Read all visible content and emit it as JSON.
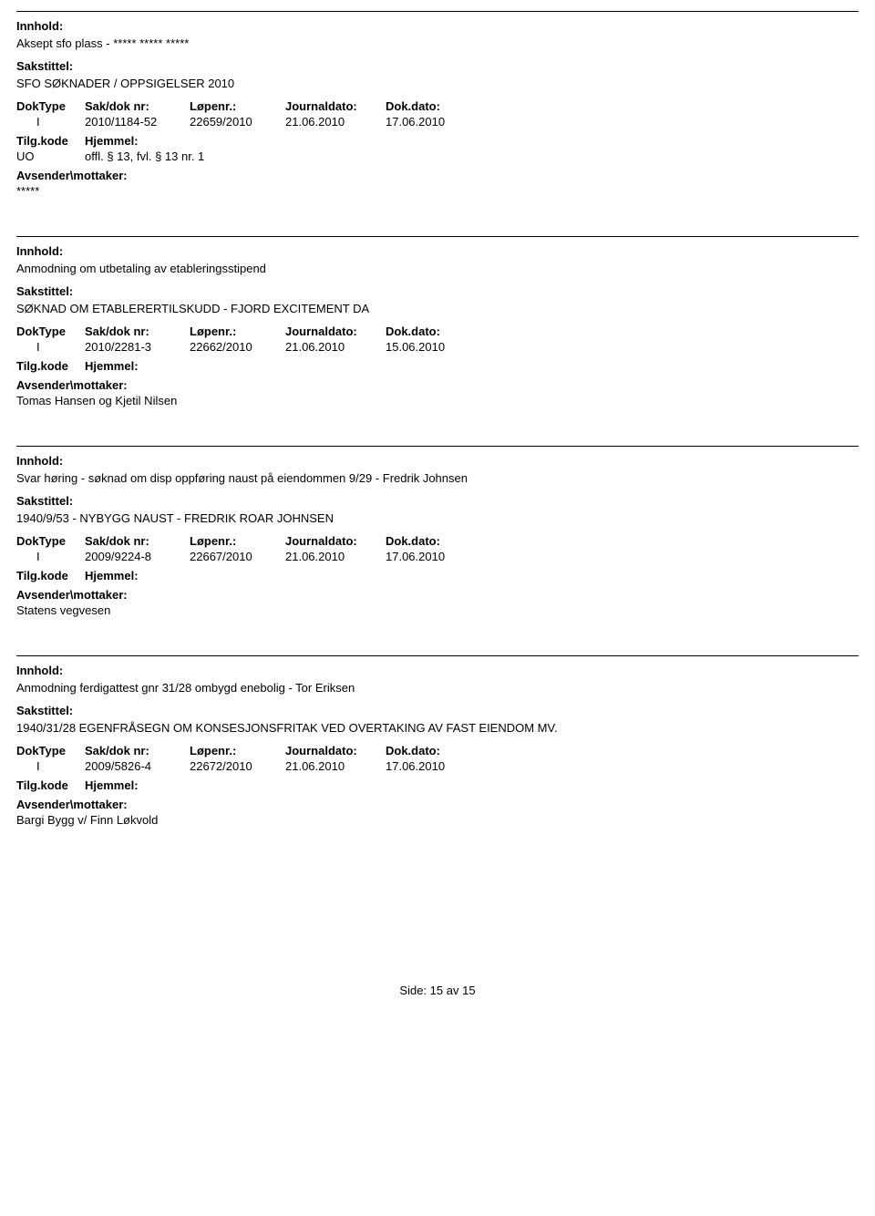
{
  "labels": {
    "innhold": "Innhold:",
    "sakstittel": "Sakstittel:",
    "doktype": "DokType",
    "sakdok": "Sak/dok nr:",
    "lopenr": "Løpenr.:",
    "journaldato": "Journaldato:",
    "dokdato": "Dok.dato:",
    "tilgkode": "Tilg.kode",
    "hjemmel": "Hjemmel:",
    "avsender": "Avsender\\mottaker:",
    "side": "Side:"
  },
  "records": [
    {
      "innhold": "Aksept sfo plass - ***** ***** *****",
      "sakstittel": "SFO SØKNADER / OPPSIGELSER 2010",
      "doktype": "I",
      "sakdok": "2010/1184-52",
      "lopenr": "22659/2010",
      "journaldato": "21.06.2010",
      "dokdato": "17.06.2010",
      "tilgkode": "UO",
      "hjemmel": "offl. § 13, fvl. § 13 nr. 1",
      "avsender": "*****"
    },
    {
      "innhold": "Anmodning om utbetaling av etableringsstipend",
      "sakstittel": "SØKNAD OM ETABLERERTILSKUDD - FJORD EXCITEMENT DA",
      "doktype": "I",
      "sakdok": "2010/2281-3",
      "lopenr": "22662/2010",
      "journaldato": "21.06.2010",
      "dokdato": "15.06.2010",
      "tilgkode": "",
      "hjemmel": "",
      "avsender": "Tomas Hansen og Kjetil Nilsen"
    },
    {
      "innhold": "Svar høring - søknad om disp oppføring naust på eiendommen 9/29 - Fredrik Johnsen",
      "sakstittel": "1940/9/53 - NYBYGG NAUST - FREDRIK ROAR JOHNSEN",
      "doktype": "I",
      "sakdok": "2009/9224-8",
      "lopenr": "22667/2010",
      "journaldato": "21.06.2010",
      "dokdato": "17.06.2010",
      "tilgkode": "",
      "hjemmel": "",
      "avsender": "Statens vegvesen"
    },
    {
      "innhold": "Anmodning ferdigattest gnr 31/28 ombygd enebolig - Tor Eriksen",
      "sakstittel": "1940/31/28 EGENFRÅSEGN OM KONSESJONSFRITAK VED OVERTAKING AV FAST EIENDOM MV.",
      "doktype": "I",
      "sakdok": "2009/5826-4",
      "lopenr": "22672/2010",
      "journaldato": "21.06.2010",
      "dokdato": "17.06.2010",
      "tilgkode": "",
      "hjemmel": "",
      "avsender": "Bargi Bygg v/ Finn Løkvold"
    }
  ],
  "page": {
    "current": "15",
    "sep": "av",
    "total": "15"
  }
}
